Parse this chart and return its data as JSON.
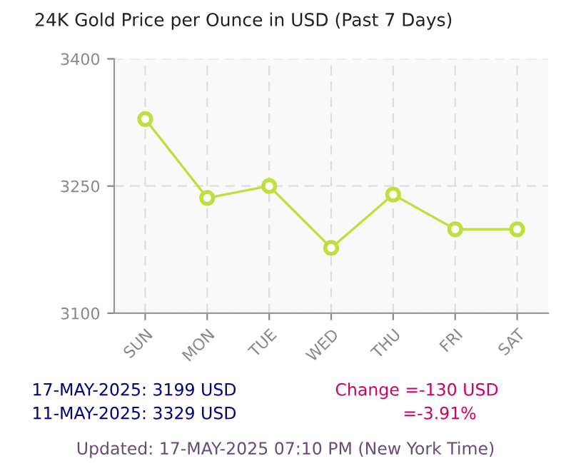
{
  "chart_data": {
    "type": "line",
    "title": "24K Gold Price per Ounce in USD (Past 7 Days)",
    "categories": [
      "SUN",
      "MON",
      "TUE",
      "WED",
      "THU",
      "FRI",
      "SAT"
    ],
    "series": [
      {
        "color": "#bfdf3f",
        "values": [
          3329,
          3236,
          3250,
          3177,
          3240,
          3199,
          3199
        ]
      }
    ],
    "ylim": [
      3100,
      3400
    ],
    "yticks": [
      3100,
      3250,
      3400
    ],
    "grid": true,
    "marker": "circle",
    "line_style": "solid",
    "annotations": [
      "17-MAY-2025: 3199 USD",
      "11-MAY-2025: 3329 USD",
      "Change =-130 USD",
      "=-3.91%",
      "Updated: 17-MAY-2025 07:10 PM (New York Time)"
    ]
  }
}
